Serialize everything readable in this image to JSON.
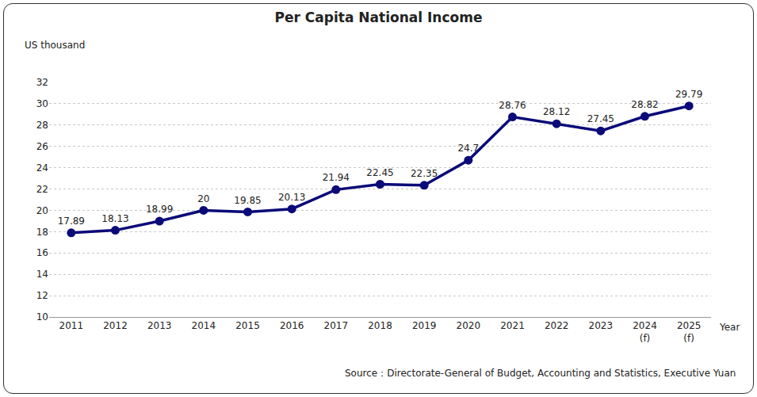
{
  "chart_data": {
    "type": "line",
    "title": "Per Capita National Income",
    "ylabel": "US thousand",
    "xlabel": "Year",
    "source": "Source：Directorate-General of Budget, Accounting and Statistics, Executive Yuan",
    "categories": [
      "2011",
      "2012",
      "2013",
      "2014",
      "2015",
      "2016",
      "2017",
      "2018",
      "2019",
      "2020",
      "2021",
      "2022",
      "2023",
      "2024\n(f)",
      "2025\n(f)"
    ],
    "values": [
      17.89,
      18.13,
      18.99,
      20,
      19.85,
      20.13,
      21.94,
      22.45,
      22.35,
      24.7,
      28.76,
      28.12,
      27.45,
      28.82,
      29.79
    ],
    "color": "#0a0a78",
    "marker": "circle",
    "line_style": "solid",
    "data_labels": true,
    "grid": true,
    "ylim": [
      10,
      32
    ],
    "yticks": [
      10,
      12,
      14,
      16,
      18,
      20,
      22,
      24,
      26,
      28,
      30,
      32
    ]
  }
}
